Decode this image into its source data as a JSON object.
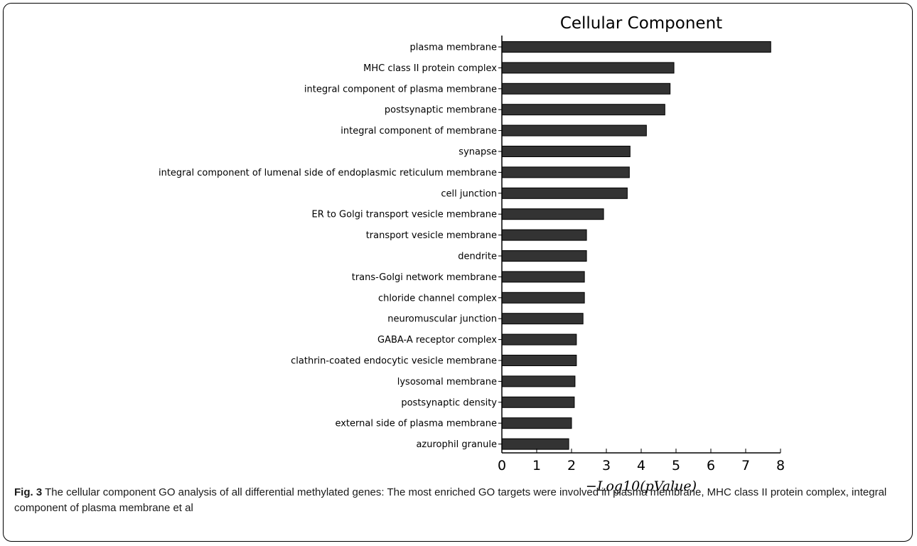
{
  "chart_data": {
    "type": "bar",
    "orientation": "horizontal",
    "title": "Cellular Component",
    "xlabel": "−Log10(pValue)",
    "xlim": [
      0,
      8
    ],
    "xticks": [
      "0",
      "1",
      "2",
      "3",
      "4",
      "5",
      "6",
      "7",
      "8"
    ],
    "bar_color": "#333333",
    "categories": [
      "plasma membrane",
      "MHC class II protein complex",
      "integral component of plasma membrane",
      "postsynaptic membrane",
      "integral component of membrane",
      "synapse",
      "integral component of lumenal side of endoplasmic reticulum membrane",
      "cell junction",
      "ER to Golgi transport vesicle membrane",
      "transport vesicle membrane",
      "dendrite",
      "trans-Golgi network membrane",
      "chloride channel complex",
      "neuromuscular junction",
      "GABA-A receptor complex",
      "clathrin-coated endocytic vesicle membrane",
      "lysosomal membrane",
      "postsynaptic density",
      "external side of plasma membrane",
      "azurophil granule"
    ],
    "values": [
      7.72,
      4.94,
      4.83,
      4.68,
      4.15,
      3.68,
      3.66,
      3.6,
      2.92,
      2.43,
      2.43,
      2.37,
      2.37,
      2.33,
      2.14,
      2.14,
      2.1,
      2.08,
      2.0,
      1.92
    ]
  },
  "caption": {
    "label": "Fig. 3",
    "text": "The cellular component GO analysis of all differential methylated genes: The most enriched GO targets were involved in plasma membrane, MHC class II protein complex, integral component of plasma membrane et al"
  }
}
